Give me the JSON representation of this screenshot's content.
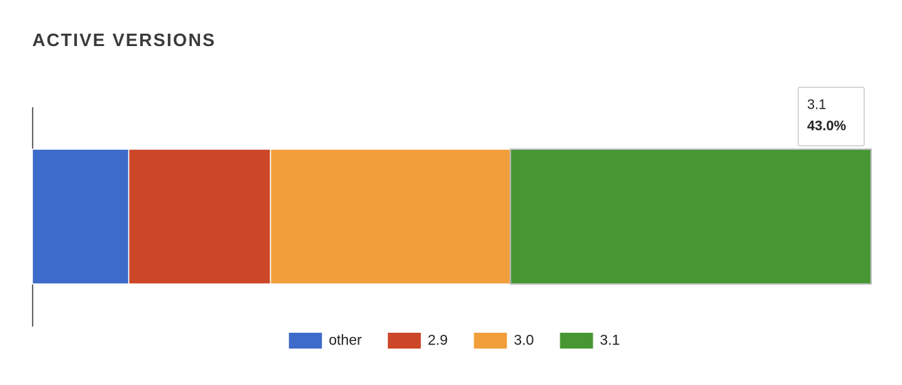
{
  "chart_data": {
    "type": "bar",
    "orientation": "horizontal",
    "stacked": true,
    "title": "ACTIVE VERSIONS",
    "series": [
      {
        "name": "other",
        "color": "#3d6bc9",
        "values": [
          11.5
        ]
      },
      {
        "name": "2.9",
        "color": "#cc4628",
        "values": [
          16.9
        ]
      },
      {
        "name": "3.0",
        "color": "#f29e3a",
        "values": [
          28.6
        ]
      },
      {
        "name": "3.1",
        "color": "#469733",
        "values": [
          43.0
        ],
        "value_labels": [
          "43.0%"
        ]
      }
    ],
    "xlim": [
      0,
      100
    ],
    "legend": "bottom"
  }
}
